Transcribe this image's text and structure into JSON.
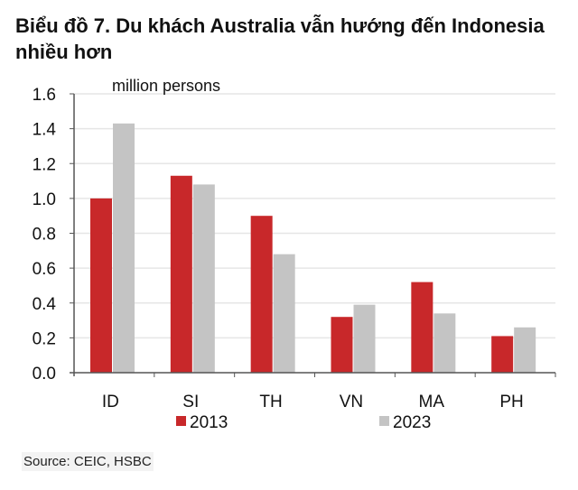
{
  "title_line1": "Biểu đồ 7. Du khách Australia vẫn hướng đến Indonesia",
  "title_line2": "nhiều hơn",
  "source": "Source: CEIC, HSBC",
  "colors": {
    "s2013": "#c8282a",
    "s2023": "#c4c4c4",
    "grid": "#e6e6e6",
    "axis": "#555555"
  },
  "chart_data": {
    "type": "bar",
    "title": "Biểu đồ 7. Du khách Australia vẫn hướng đến Indonesia nhiều hơn",
    "xlabel": "",
    "ylabel": "million persons",
    "ylim": [
      0,
      1.6
    ],
    "yticks": [
      "0.0",
      "0.2",
      "0.4",
      "0.6",
      "0.8",
      "1.0",
      "1.2",
      "1.4",
      "1.6"
    ],
    "categories": [
      "ID",
      "SI",
      "TH",
      "VN",
      "MA",
      "PH"
    ],
    "series": [
      {
        "name": "2013",
        "values": [
          1.0,
          1.13,
          0.9,
          0.32,
          0.52,
          0.21
        ]
      },
      {
        "name": "2023",
        "values": [
          1.43,
          1.08,
          0.68,
          0.39,
          0.34,
          0.26
        ]
      }
    ],
    "grid": true,
    "legend_position": "bottom"
  }
}
